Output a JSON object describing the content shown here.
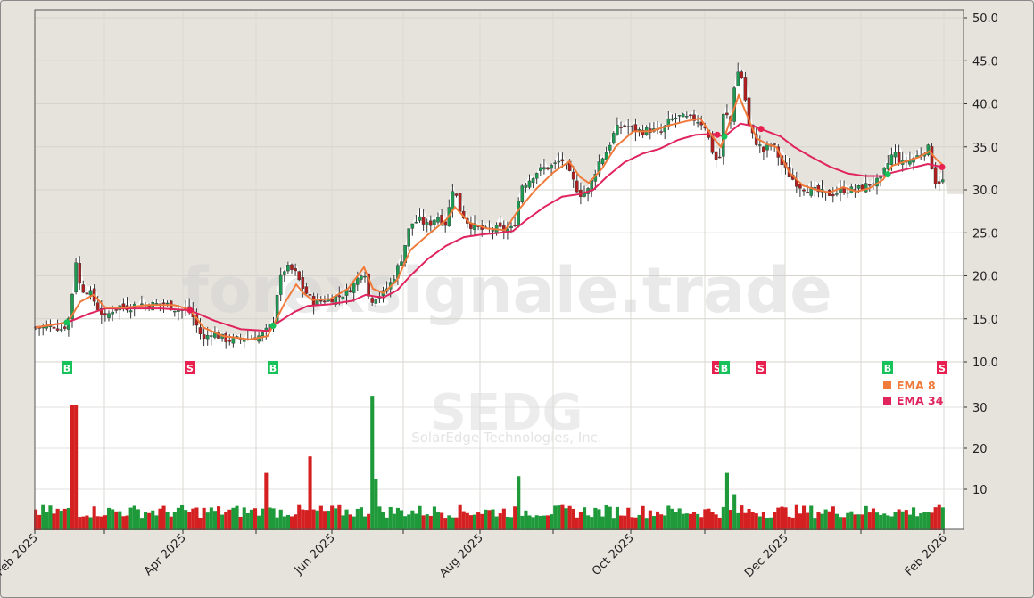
{
  "chart_data": {
    "type": "candlestick",
    "title": "",
    "symbol": "SEDG",
    "company": "SolarEdge Technologies, Inc.",
    "watermark": "forexsignale.trade",
    "price_axis": {
      "ticks": [
        "50.0",
        "45.0",
        "40.0",
        "35.0",
        "30.0",
        "25.0",
        "20.0",
        "15.0",
        "10.0"
      ],
      "ylim": [
        8,
        51
      ]
    },
    "volume_axis": {
      "ticks": [
        "30",
        "20",
        "10"
      ],
      "ylim": [
        0,
        33
      ]
    },
    "x_ticks": [
      "Feb 2025",
      "Apr 2025",
      "Jun 2025",
      "Aug 2025",
      "Oct 2025",
      "Dec 2025",
      "Feb 2026"
    ],
    "legend": [
      {
        "label": "EMA 8",
        "color": "#f07a3a"
      },
      {
        "label": "EMA 34",
        "color": "#e0245e"
      }
    ],
    "colors": {
      "up": "#1e9a3a",
      "down": "#d42020",
      "buy": "#17c25a",
      "sell": "#e8204f",
      "ema8": "#f07a3a",
      "ema34": "#e0245e"
    },
    "signals": [
      {
        "type": "B",
        "label": "B",
        "x": 75
      },
      {
        "type": "S",
        "label": "S",
        "x": 213
      },
      {
        "type": "B",
        "label": "B",
        "x": 306
      },
      {
        "type": "S",
        "label": "S",
        "x": 804
      },
      {
        "type": "B",
        "label": "B",
        "x": 812
      },
      {
        "type": "S",
        "label": "S",
        "x": 853
      },
      {
        "type": "B",
        "label": "B",
        "x": 995
      },
      {
        "type": "S",
        "label": "S",
        "x": 1056
      }
    ],
    "close_path": [
      [
        40,
        14.0
      ],
      [
        50,
        14.1
      ],
      [
        60,
        14.2
      ],
      [
        70,
        13.8
      ],
      [
        76,
        14.6
      ],
      [
        80,
        16.5
      ],
      [
        84,
        22.5
      ],
      [
        90,
        18.5
      ],
      [
        100,
        18.2
      ],
      [
        110,
        16.2
      ],
      [
        118,
        15.0
      ],
      [
        125,
        16.0
      ],
      [
        135,
        16.5
      ],
      [
        145,
        16.3
      ],
      [
        155,
        16.8
      ],
      [
        165,
        16.6
      ],
      [
        175,
        16.7
      ],
      [
        185,
        16.8
      ],
      [
        195,
        16.2
      ],
      [
        205,
        16.0
      ],
      [
        213,
        16.0
      ],
      [
        220,
        14.3
      ],
      [
        228,
        12.5
      ],
      [
        236,
        13.5
      ],
      [
        245,
        13.0
      ],
      [
        255,
        12.5
      ],
      [
        265,
        12.6
      ],
      [
        275,
        12.7
      ],
      [
        285,
        12.8
      ],
      [
        295,
        13.2
      ],
      [
        306,
        14.5
      ],
      [
        312,
        19.0
      ],
      [
        320,
        21.0
      ],
      [
        330,
        20.5
      ],
      [
        340,
        18.5
      ],
      [
        350,
        17.0
      ],
      [
        360,
        17.1
      ],
      [
        370,
        17.3
      ],
      [
        380,
        17.6
      ],
      [
        390,
        18.2
      ],
      [
        400,
        19.5
      ],
      [
        408,
        21.0
      ],
      [
        414,
        17.0
      ],
      [
        420,
        17.5
      ],
      [
        430,
        18.0
      ],
      [
        440,
        19.5
      ],
      [
        450,
        22.0
      ],
      [
        460,
        26.0
      ],
      [
        470,
        26.5
      ],
      [
        480,
        25.8
      ],
      [
        490,
        27.0
      ],
      [
        500,
        26.0
      ],
      [
        508,
        30.5
      ],
      [
        516,
        27.5
      ],
      [
        526,
        26.0
      ],
      [
        536,
        25.5
      ],
      [
        546,
        25.2
      ],
      [
        556,
        25.5
      ],
      [
        566,
        25.3
      ],
      [
        576,
        25.5
      ],
      [
        584,
        30.5
      ],
      [
        592,
        31.0
      ],
      [
        600,
        32.0
      ],
      [
        610,
        32.5
      ],
      [
        620,
        32.8
      ],
      [
        630,
        33.5
      ],
      [
        640,
        31.5
      ],
      [
        650,
        29.5
      ],
      [
        660,
        30.0
      ],
      [
        670,
        33.0
      ],
      [
        680,
        34.5
      ],
      [
        690,
        37.0
      ],
      [
        700,
        37.5
      ],
      [
        710,
        37.0
      ],
      [
        720,
        36.8
      ],
      [
        730,
        37.0
      ],
      [
        740,
        36.5
      ],
      [
        750,
        38.0
      ],
      [
        760,
        38.5
      ],
      [
        770,
        38.3
      ],
      [
        780,
        38.2
      ],
      [
        790,
        37.5
      ],
      [
        800,
        34.0
      ],
      [
        806,
        33.0
      ],
      [
        812,
        40.0
      ],
      [
        818,
        37.0
      ],
      [
        825,
        44.0
      ],
      [
        832,
        43.0
      ],
      [
        840,
        37.0
      ],
      [
        848,
        35.5
      ],
      [
        856,
        34.5
      ],
      [
        866,
        35.5
      ],
      [
        876,
        33.0
      ],
      [
        886,
        31.5
      ],
      [
        896,
        30.5
      ],
      [
        906,
        30.0
      ],
      [
        916,
        29.8
      ],
      [
        926,
        29.5
      ],
      [
        936,
        29.6
      ],
      [
        946,
        30.0
      ],
      [
        956,
        30.0
      ],
      [
        966,
        30.2
      ],
      [
        976,
        30.8
      ],
      [
        986,
        31.0
      ],
      [
        995,
        33.0
      ],
      [
        1002,
        34.5
      ],
      [
        1010,
        33.0
      ],
      [
        1020,
        33.5
      ],
      [
        1030,
        34.0
      ],
      [
        1040,
        35.0
      ],
      [
        1048,
        31.0
      ],
      [
        1056,
        31.0
      ]
    ],
    "ema8_path": [
      [
        40,
        14.0
      ],
      [
        76,
        14.6
      ],
      [
        90,
        17.0
      ],
      [
        105,
        17.8
      ],
      [
        118,
        16.3
      ],
      [
        140,
        16.3
      ],
      [
        165,
        16.6
      ],
      [
        195,
        16.6
      ],
      [
        213,
        16.1
      ],
      [
        228,
        14.0
      ],
      [
        250,
        13.0
      ],
      [
        280,
        12.6
      ],
      [
        300,
        13.0
      ],
      [
        306,
        14.2
      ],
      [
        320,
        17.0
      ],
      [
        332,
        19.0
      ],
      [
        340,
        18.0
      ],
      [
        350,
        17.2
      ],
      [
        370,
        17.3
      ],
      [
        390,
        18.5
      ],
      [
        408,
        21.0
      ],
      [
        418,
        18.5
      ],
      [
        430,
        18.0
      ],
      [
        445,
        19.5
      ],
      [
        460,
        23.0
      ],
      [
        480,
        24.8
      ],
      [
        500,
        26.5
      ],
      [
        510,
        28.0
      ],
      [
        526,
        26.2
      ],
      [
        546,
        25.5
      ],
      [
        566,
        25.3
      ],
      [
        580,
        27.5
      ],
      [
        600,
        30.0
      ],
      [
        620,
        32.0
      ],
      [
        638,
        33.3
      ],
      [
        650,
        31.5
      ],
      [
        660,
        30.8
      ],
      [
        675,
        32.5
      ],
      [
        690,
        35.0
      ],
      [
        710,
        36.8
      ],
      [
        730,
        36.8
      ],
      [
        750,
        37.5
      ],
      [
        770,
        38.0
      ],
      [
        785,
        38.3
      ],
      [
        800,
        36.0
      ],
      [
        808,
        35.0
      ],
      [
        815,
        37.0
      ],
      [
        828,
        41.0
      ],
      [
        838,
        38.5
      ],
      [
        848,
        36.0
      ],
      [
        860,
        35.3
      ],
      [
        870,
        35.0
      ],
      [
        885,
        32.0
      ],
      [
        900,
        30.5
      ],
      [
        915,
        30.0
      ],
      [
        930,
        29.7
      ],
      [
        945,
        30.3
      ],
      [
        960,
        29.8
      ],
      [
        975,
        30.2
      ],
      [
        990,
        31.2
      ],
      [
        1000,
        32.8
      ],
      [
        1015,
        33.3
      ],
      [
        1030,
        33.8
      ],
      [
        1042,
        34.5
      ],
      [
        1050,
        33.5
      ],
      [
        1058,
        32.8
      ]
    ],
    "ema34_path": [
      [
        40,
        14.0
      ],
      [
        76,
        14.6
      ],
      [
        100,
        15.6
      ],
      [
        118,
        16.2
      ],
      [
        150,
        16.2
      ],
      [
        180,
        16.2
      ],
      [
        213,
        16.0
      ],
      [
        240,
        14.8
      ],
      [
        270,
        13.8
      ],
      [
        300,
        13.6
      ],
      [
        306,
        14.2
      ],
      [
        330,
        15.8
      ],
      [
        345,
        16.5
      ],
      [
        370,
        16.7
      ],
      [
        395,
        17.1
      ],
      [
        410,
        17.8
      ],
      [
        420,
        17.6
      ],
      [
        430,
        17.5
      ],
      [
        445,
        18.3
      ],
      [
        460,
        20.0
      ],
      [
        480,
        22.0
      ],
      [
        500,
        23.5
      ],
      [
        520,
        24.5
      ],
      [
        540,
        24.8
      ],
      [
        560,
        25.0
      ],
      [
        575,
        25.2
      ],
      [
        590,
        26.5
      ],
      [
        610,
        28.0
      ],
      [
        630,
        29.2
      ],
      [
        650,
        29.5
      ],
      [
        665,
        30.0
      ],
      [
        680,
        31.5
      ],
      [
        700,
        33.2
      ],
      [
        720,
        34.2
      ],
      [
        740,
        34.8
      ],
      [
        760,
        35.8
      ],
      [
        780,
        36.4
      ],
      [
        800,
        36.5
      ],
      [
        812,
        36.2
      ],
      [
        830,
        37.7
      ],
      [
        845,
        37.4
      ],
      [
        860,
        36.8
      ],
      [
        875,
        36.2
      ],
      [
        890,
        35.0
      ],
      [
        910,
        33.8
      ],
      [
        930,
        32.7
      ],
      [
        950,
        31.9
      ],
      [
        970,
        31.6
      ],
      [
        990,
        31.6
      ],
      [
        1000,
        32.0
      ],
      [
        1020,
        32.5
      ],
      [
        1040,
        33.0
      ],
      [
        1058,
        32.6
      ]
    ],
    "volume_spikes": [
      {
        "x": 83,
        "value": 30.5,
        "dir": "down"
      },
      {
        "x": 298,
        "value": 14.0,
        "dir": "down"
      },
      {
        "x": 347,
        "value": 18.0,
        "dir": "down"
      },
      {
        "x": 416,
        "value": 32.8,
        "dir": "up"
      },
      {
        "x": 420,
        "value": 12.5,
        "dir": "up"
      },
      {
        "x": 582,
        "value": 13.2,
        "dir": "up"
      },
      {
        "x": 813,
        "value": 14.0,
        "dir": "up"
      },
      {
        "x": 825,
        "value": 8.8,
        "dir": "up"
      }
    ],
    "volume_base_level": 3.0,
    "last_data_x": 1058
  }
}
